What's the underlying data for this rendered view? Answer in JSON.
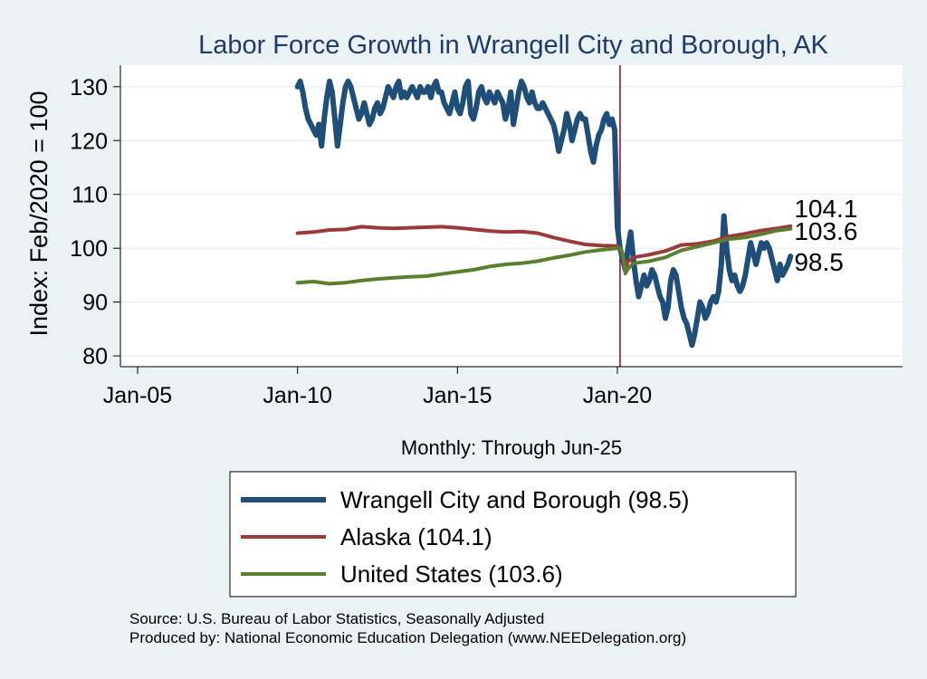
{
  "chart_data": {
    "type": "line",
    "title": "Labor Force Growth in Wrangell City and Borough, AK",
    "xlabel": "Monthly: Through Jun-25",
    "ylabel": "Index: Feb/2020 = 100",
    "x_range": [
      "Jan-05",
      "Dec-28"
    ],
    "ylim": [
      78,
      134
    ],
    "yticks": [
      80,
      90,
      100,
      110,
      120,
      130
    ],
    "xticks": [
      {
        "label": "Jan-05",
        "date": "2005-01"
      },
      {
        "label": "Jan-10",
        "date": "2010-01"
      },
      {
        "label": "Jan-15",
        "date": "2015-01"
      },
      {
        "label": "Jan-20",
        "date": "2020-01"
      }
    ],
    "reference_line": {
      "date": "2020-02",
      "color": "#8b1a2b"
    },
    "grid": true,
    "legend_position": "bottom",
    "series": [
      {
        "name": "Wrangell City and Borough  (98.5)",
        "end_label": "98.5",
        "color": "#1f4e79",
        "points": [
          [
            "2010-01",
            130
          ],
          [
            "2010-02",
            131
          ],
          [
            "2010-03",
            129
          ],
          [
            "2010-04",
            126
          ],
          [
            "2010-05",
            124
          ],
          [
            "2010-06",
            123
          ],
          [
            "2010-07",
            122
          ],
          [
            "2010-08",
            121
          ],
          [
            "2010-09",
            123
          ],
          [
            "2010-10",
            119
          ],
          [
            "2010-11",
            124
          ],
          [
            "2010-12",
            128
          ],
          [
            "2011-01",
            131
          ],
          [
            "2011-02",
            129
          ],
          [
            "2011-03",
            124
          ],
          [
            "2011-04",
            119
          ],
          [
            "2011-05",
            123
          ],
          [
            "2011-06",
            127
          ],
          [
            "2011-07",
            130
          ],
          [
            "2011-08",
            131
          ],
          [
            "2011-09",
            130
          ],
          [
            "2011-10",
            128
          ],
          [
            "2011-11",
            126
          ],
          [
            "2011-12",
            124
          ],
          [
            "2012-01",
            125
          ],
          [
            "2012-02",
            127
          ],
          [
            "2012-03",
            125
          ],
          [
            "2012-04",
            123
          ],
          [
            "2012-05",
            124
          ],
          [
            "2012-06",
            126
          ],
          [
            "2012-07",
            127
          ],
          [
            "2012-08",
            125
          ],
          [
            "2012-09",
            126
          ],
          [
            "2012-10",
            128
          ],
          [
            "2012-11",
            130
          ],
          [
            "2012-12",
            129
          ],
          [
            "2013-01",
            128
          ],
          [
            "2013-02",
            130
          ],
          [
            "2013-03",
            131
          ],
          [
            "2013-04",
            128
          ],
          [
            "2013-05",
            129
          ],
          [
            "2013-06",
            128
          ],
          [
            "2013-07",
            129
          ],
          [
            "2013-08",
            130
          ],
          [
            "2013-09",
            129
          ],
          [
            "2013-10",
            128
          ],
          [
            "2013-11",
            130
          ],
          [
            "2013-12",
            129
          ],
          [
            "2014-01",
            129
          ],
          [
            "2014-02",
            130
          ],
          [
            "2014-03",
            128
          ],
          [
            "2014-04",
            130
          ],
          [
            "2014-05",
            131
          ],
          [
            "2014-06",
            129
          ],
          [
            "2014-07",
            129
          ],
          [
            "2014-08",
            127
          ],
          [
            "2014-09",
            126
          ],
          [
            "2014-10",
            125
          ],
          [
            "2014-11",
            127
          ],
          [
            "2014-12",
            129
          ],
          [
            "2015-01",
            126
          ],
          [
            "2015-02",
            125
          ],
          [
            "2015-03",
            127
          ],
          [
            "2015-04",
            130
          ],
          [
            "2015-05",
            131
          ],
          [
            "2015-06",
            125
          ],
          [
            "2015-07",
            124
          ],
          [
            "2015-08",
            126
          ],
          [
            "2015-09",
            129
          ],
          [
            "2015-10",
            130
          ],
          [
            "2015-11",
            128
          ],
          [
            "2015-12",
            127
          ],
          [
            "2016-01",
            129
          ],
          [
            "2016-02",
            128
          ],
          [
            "2016-03",
            127
          ],
          [
            "2016-04",
            129
          ],
          [
            "2016-05",
            128
          ],
          [
            "2016-06",
            127
          ],
          [
            "2016-07",
            124
          ],
          [
            "2016-08",
            126
          ],
          [
            "2016-09",
            129
          ],
          [
            "2016-10",
            123
          ],
          [
            "2016-11",
            126
          ],
          [
            "2016-12",
            129
          ],
          [
            "2017-01",
            131
          ],
          [
            "2017-02",
            130
          ],
          [
            "2017-03",
            128
          ],
          [
            "2017-04",
            127
          ],
          [
            "2017-05",
            129
          ],
          [
            "2017-06",
            127
          ],
          [
            "2017-07",
            126
          ],
          [
            "2017-08",
            126
          ],
          [
            "2017-09",
            127
          ],
          [
            "2017-10",
            126
          ],
          [
            "2017-11",
            125
          ],
          [
            "2017-12",
            124
          ],
          [
            "2018-01",
            123
          ],
          [
            "2018-02",
            121
          ],
          [
            "2018-03",
            118
          ],
          [
            "2018-04",
            120
          ],
          [
            "2018-05",
            122
          ],
          [
            "2018-06",
            125
          ],
          [
            "2018-07",
            123
          ],
          [
            "2018-08",
            120
          ],
          [
            "2018-09",
            122
          ],
          [
            "2018-10",
            124
          ],
          [
            "2018-11",
            125
          ],
          [
            "2018-12",
            124
          ],
          [
            "2019-01",
            124
          ],
          [
            "2019-02",
            121
          ],
          [
            "2019-03",
            118
          ],
          [
            "2019-04",
            116
          ],
          [
            "2019-05",
            119
          ],
          [
            "2019-06",
            121
          ],
          [
            "2019-07",
            122
          ],
          [
            "2019-08",
            124
          ],
          [
            "2019-09",
            125
          ],
          [
            "2019-10",
            123
          ],
          [
            "2019-11",
            124
          ],
          [
            "2019-12",
            122
          ],
          [
            "2020-01",
            104
          ],
          [
            "2020-02",
            100
          ],
          [
            "2020-03",
            98
          ],
          [
            "2020-04",
            96
          ],
          [
            "2020-05",
            100
          ],
          [
            "2020-06",
            103
          ],
          [
            "2020-07",
            98
          ],
          [
            "2020-08",
            94
          ],
          [
            "2020-09",
            91
          ],
          [
            "2020-10",
            93
          ],
          [
            "2020-11",
            95
          ],
          [
            "2020-12",
            93
          ],
          [
            "2021-01",
            94
          ],
          [
            "2021-02",
            96
          ],
          [
            "2021-03",
            95
          ],
          [
            "2021-04",
            93
          ],
          [
            "2021-05",
            91
          ],
          [
            "2021-06",
            90
          ],
          [
            "2021-07",
            87
          ],
          [
            "2021-08",
            89
          ],
          [
            "2021-09",
            94
          ],
          [
            "2021-10",
            96
          ],
          [
            "2021-11",
            95
          ],
          [
            "2021-12",
            92
          ],
          [
            "2022-01",
            89
          ],
          [
            "2022-02",
            87
          ],
          [
            "2022-03",
            86
          ],
          [
            "2022-04",
            84
          ],
          [
            "2022-05",
            82
          ],
          [
            "2022-06",
            84
          ],
          [
            "2022-07",
            87
          ],
          [
            "2022-08",
            90
          ],
          [
            "2022-09",
            89
          ],
          [
            "2022-10",
            87
          ],
          [
            "2022-11",
            88
          ],
          [
            "2022-12",
            90
          ],
          [
            "2023-01",
            91
          ],
          [
            "2023-02",
            90
          ],
          [
            "2023-03",
            92
          ],
          [
            "2023-04",
            97
          ],
          [
            "2023-05",
            106
          ],
          [
            "2023-06",
            100
          ],
          [
            "2023-07",
            96
          ],
          [
            "2023-08",
            94
          ],
          [
            "2023-09",
            95
          ],
          [
            "2023-10",
            93
          ],
          [
            "2023-11",
            92
          ],
          [
            "2023-12",
            93
          ],
          [
            "2024-01",
            95
          ],
          [
            "2024-02",
            98
          ],
          [
            "2024-03",
            101
          ],
          [
            "2024-04",
            99
          ],
          [
            "2024-05",
            97
          ],
          [
            "2024-06",
            99
          ],
          [
            "2024-07",
            101
          ],
          [
            "2024-08",
            100
          ],
          [
            "2024-09",
            101
          ],
          [
            "2024-10",
            100
          ],
          [
            "2024-11",
            98
          ],
          [
            "2024-12",
            96
          ],
          [
            "2025-01",
            94
          ],
          [
            "2025-02",
            97
          ],
          [
            "2025-03",
            95
          ],
          [
            "2025-04",
            96
          ],
          [
            "2025-05",
            97
          ],
          [
            "2025-06",
            98.5
          ]
        ]
      },
      {
        "name": "Alaska (104.1)",
        "end_label": "104.1",
        "color": "#9b3a3a",
        "points": [
          [
            "2010-01",
            102.8
          ],
          [
            "2010-07",
            103.0
          ],
          [
            "2011-01",
            103.4
          ],
          [
            "2011-07",
            103.5
          ],
          [
            "2012-01",
            104.0
          ],
          [
            "2012-07",
            103.8
          ],
          [
            "2013-01",
            103.7
          ],
          [
            "2013-07",
            103.8
          ],
          [
            "2014-01",
            103.9
          ],
          [
            "2014-07",
            104.0
          ],
          [
            "2015-01",
            103.8
          ],
          [
            "2015-07",
            103.5
          ],
          [
            "2016-01",
            103.2
          ],
          [
            "2016-07",
            103.0
          ],
          [
            "2017-01",
            103.1
          ],
          [
            "2017-07",
            102.8
          ],
          [
            "2018-01",
            102.0
          ],
          [
            "2018-07",
            101.3
          ],
          [
            "2019-01",
            100.7
          ],
          [
            "2019-07",
            100.5
          ],
          [
            "2020-01",
            100.4
          ],
          [
            "2020-02",
            100
          ],
          [
            "2020-03",
            98.5
          ],
          [
            "2020-04",
            96.5
          ],
          [
            "2020-05",
            97.5
          ],
          [
            "2020-07",
            98.3
          ],
          [
            "2021-01",
            98.8
          ],
          [
            "2021-07",
            99.5
          ],
          [
            "2022-01",
            100.6
          ],
          [
            "2022-07",
            100.8
          ],
          [
            "2023-01",
            101.3
          ],
          [
            "2023-07",
            102.2
          ],
          [
            "2024-01",
            102.7
          ],
          [
            "2024-07",
            103.3
          ],
          [
            "2025-01",
            103.7
          ],
          [
            "2025-06",
            104.1
          ]
        ]
      },
      {
        "name": "United States (103.6)",
        "end_label": "103.6",
        "color": "#5a7f2e",
        "points": [
          [
            "2010-01",
            93.6
          ],
          [
            "2010-07",
            93.8
          ],
          [
            "2011-01",
            93.4
          ],
          [
            "2011-07",
            93.6
          ],
          [
            "2012-01",
            94.0
          ],
          [
            "2012-07",
            94.3
          ],
          [
            "2013-01",
            94.5
          ],
          [
            "2013-07",
            94.7
          ],
          [
            "2014-01",
            94.8
          ],
          [
            "2014-07",
            95.2
          ],
          [
            "2015-01",
            95.6
          ],
          [
            "2015-07",
            96.0
          ],
          [
            "2016-01",
            96.6
          ],
          [
            "2016-07",
            97.0
          ],
          [
            "2017-01",
            97.2
          ],
          [
            "2017-07",
            97.6
          ],
          [
            "2018-01",
            98.2
          ],
          [
            "2018-07",
            98.7
          ],
          [
            "2019-01",
            99.3
          ],
          [
            "2019-07",
            99.7
          ],
          [
            "2020-01",
            100.0
          ],
          [
            "2020-02",
            100
          ],
          [
            "2020-03",
            99.0
          ],
          [
            "2020-04",
            95.3
          ],
          [
            "2020-05",
            96.2
          ],
          [
            "2020-07",
            97.2
          ],
          [
            "2021-01",
            97.6
          ],
          [
            "2021-07",
            98.3
          ],
          [
            "2022-01",
            99.6
          ],
          [
            "2022-07",
            100.3
          ],
          [
            "2023-01",
            101.0
          ],
          [
            "2023-07",
            101.7
          ],
          [
            "2024-01",
            102.0
          ],
          [
            "2024-07",
            102.6
          ],
          [
            "2025-01",
            103.3
          ],
          [
            "2025-06",
            103.6
          ]
        ]
      }
    ]
  },
  "notes": {
    "source": "Source: U.S. Bureau of Labor Statistics, Seasonally Adjusted",
    "produced_by": "Produced by: National Economic Education Delegation (www.NEEDelegation.org)"
  }
}
